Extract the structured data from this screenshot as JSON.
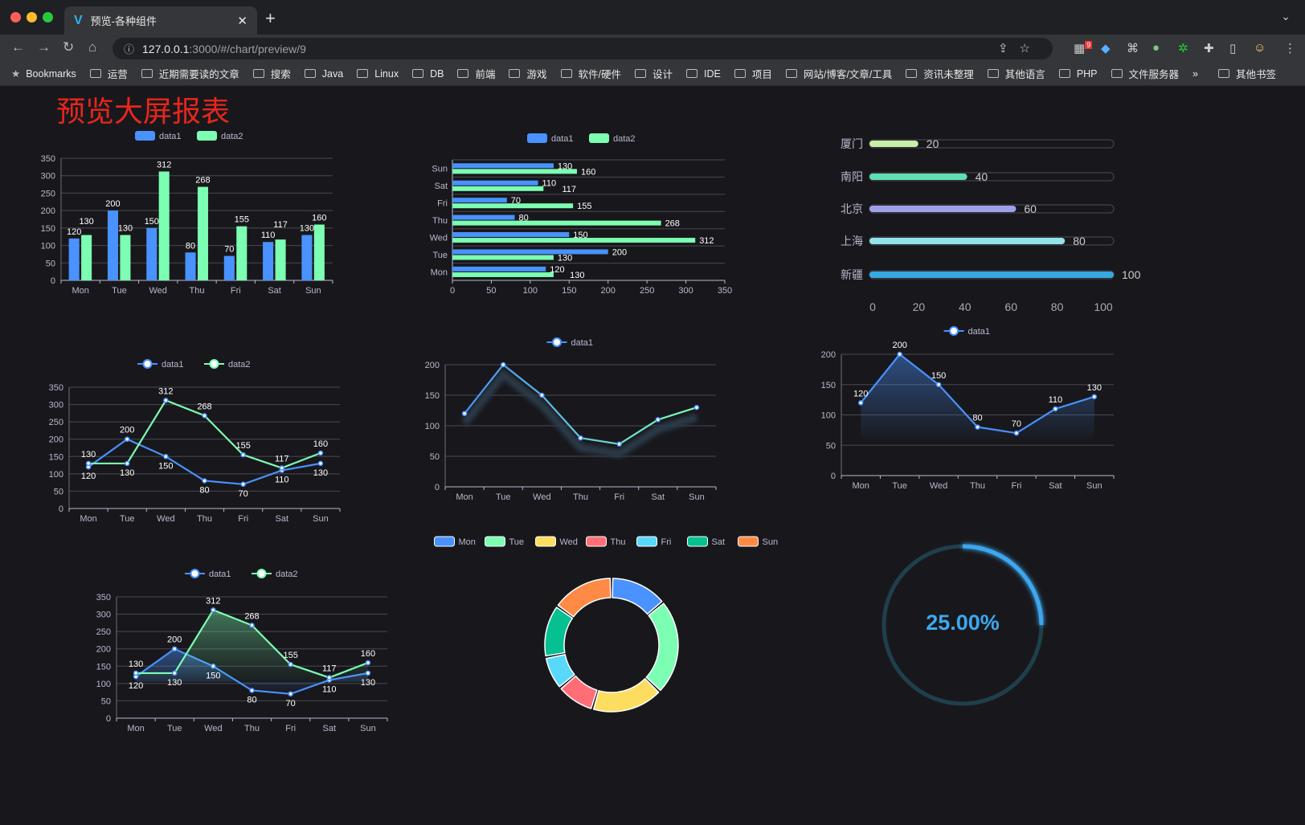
{
  "browser": {
    "tab_title": "预览-各种组件",
    "url_host": "127.0.0.1",
    "url_path": ":3000/#/chart/preview/9",
    "extension_badge": "9",
    "bookmarks_label": "Bookmarks",
    "bookmarks": [
      "运营",
      "近期需要读的文章",
      "搜索",
      "Java",
      "Linux",
      "DB",
      "前端",
      "游戏",
      "软件/硬件",
      "设计",
      "IDE",
      "项目",
      "网站/博客/文章/工具",
      "资讯未整理",
      "其他语言",
      "PHP",
      "文件服务器"
    ],
    "more": "»",
    "other_bookmarks": "其他书签"
  },
  "page": {
    "title": "预览大屏报表"
  },
  "colors": {
    "data1": "#4992ff",
    "data2": "#7cffb2",
    "title": "#e8261c",
    "background": "#18181c"
  },
  "chart_data": [
    {
      "id": "bar-vertical",
      "type": "bar",
      "legend": [
        "data1",
        "data2"
      ],
      "categories": [
        "Mon",
        "Tue",
        "Wed",
        "Thu",
        "Fri",
        "Sat",
        "Sun"
      ],
      "series": [
        {
          "name": "data1",
          "values": [
            120,
            200,
            150,
            80,
            70,
            110,
            130
          ]
        },
        {
          "name": "data2",
          "values": [
            130,
            130,
            312,
            268,
            155,
            117,
            160
          ]
        }
      ],
      "ylim": [
        0,
        350
      ],
      "yticks": [
        "0",
        "50",
        "100",
        "150",
        "200",
        "250",
        "300",
        "350"
      ],
      "grid": true,
      "data_labels": true
    },
    {
      "id": "bar-horizontal",
      "type": "bar",
      "orientation": "horizontal",
      "legend": [
        "data1",
        "data2"
      ],
      "categories": [
        "Mon",
        "Tue",
        "Wed",
        "Thu",
        "Fri",
        "Sat",
        "Sun"
      ],
      "series": [
        {
          "name": "data1",
          "values": [
            120,
            200,
            150,
            80,
            70,
            110,
            130
          ]
        },
        {
          "name": "data2",
          "values": [
            130,
            130,
            312,
            268,
            155,
            117,
            160
          ]
        }
      ],
      "xlim": [
        0,
        350
      ],
      "xticks": [
        "0",
        "50",
        "100",
        "150",
        "200",
        "250",
        "300",
        "350"
      ],
      "grid": true,
      "data_labels": true
    },
    {
      "id": "progress-bars",
      "type": "bar",
      "orientation": "horizontal",
      "categories": [
        "厦门",
        "南阳",
        "北京",
        "上海",
        "新疆"
      ],
      "values": [
        20,
        40,
        60,
        80,
        100
      ],
      "colors": [
        "#c8eea8",
        "#5fe0b1",
        "#9fa0ea",
        "#93e3ea",
        "#36a9e0"
      ],
      "xlim": [
        0,
        100
      ],
      "xticks": [
        "0",
        "20",
        "40",
        "60",
        "80",
        "100"
      ]
    },
    {
      "id": "line-two-series",
      "type": "line",
      "legend": [
        "data1",
        "data2"
      ],
      "categories": [
        "Mon",
        "Tue",
        "Wed",
        "Thu",
        "Fri",
        "Sat",
        "Sun"
      ],
      "series": [
        {
          "name": "data1",
          "values": [
            120,
            200,
            150,
            80,
            70,
            110,
            130
          ]
        },
        {
          "name": "data2",
          "values": [
            130,
            130,
            312,
            268,
            155,
            117,
            160
          ]
        }
      ],
      "ylim": [
        0,
        350
      ],
      "yticks": [
        "0",
        "50",
        "100",
        "150",
        "200",
        "250",
        "300",
        "350"
      ],
      "grid": true,
      "data_labels": true
    },
    {
      "id": "line-gradient",
      "type": "line",
      "legend": [
        "data1"
      ],
      "categories": [
        "Mon",
        "Tue",
        "Wed",
        "Thu",
        "Fri",
        "Sat",
        "Sun"
      ],
      "series": [
        {
          "name": "data1",
          "values": [
            120,
            200,
            150,
            80,
            70,
            110,
            130
          ]
        }
      ],
      "ylim": [
        0,
        200
      ],
      "yticks": [
        "0",
        "50",
        "100",
        "150",
        "200"
      ],
      "grid": true,
      "data_labels": false
    },
    {
      "id": "area-single",
      "type": "area",
      "legend": [
        "data1"
      ],
      "categories": [
        "Mon",
        "Tue",
        "Wed",
        "Thu",
        "Fri",
        "Sat",
        "Sun"
      ],
      "series": [
        {
          "name": "data1",
          "values": [
            120,
            200,
            150,
            80,
            70,
            110,
            130
          ]
        }
      ],
      "ylim": [
        0,
        200
      ],
      "yticks": [
        "0",
        "50",
        "100",
        "150",
        "200"
      ],
      "grid": true,
      "data_labels": true
    },
    {
      "id": "area-two-series",
      "type": "area",
      "legend": [
        "data1",
        "data2"
      ],
      "categories": [
        "Mon",
        "Tue",
        "Wed",
        "Thu",
        "Fri",
        "Sat",
        "Sun"
      ],
      "series": [
        {
          "name": "data1",
          "values": [
            120,
            200,
            150,
            80,
            70,
            110,
            130
          ]
        },
        {
          "name": "data2",
          "values": [
            130,
            130,
            312,
            268,
            155,
            117,
            160
          ]
        }
      ],
      "ylim": [
        0,
        350
      ],
      "yticks": [
        "0",
        "50",
        "100",
        "150",
        "200",
        "250",
        "300",
        "350"
      ],
      "grid": true,
      "data_labels": true
    },
    {
      "id": "donut",
      "type": "pie",
      "legend": [
        "Mon",
        "Tue",
        "Wed",
        "Thu",
        "Fri",
        "Sat",
        "Sun"
      ],
      "values": [
        120,
        200,
        150,
        80,
        70,
        110,
        130
      ],
      "colors": [
        "#4992ff",
        "#7cffb2",
        "#fddd60",
        "#ff6e76",
        "#58d9f9",
        "#05c091",
        "#ff8a45"
      ]
    },
    {
      "id": "gauge",
      "type": "gauge",
      "value": 25,
      "label": "25.00%",
      "color": "#3ea6ee",
      "track_color": "#1f3f4c"
    }
  ]
}
